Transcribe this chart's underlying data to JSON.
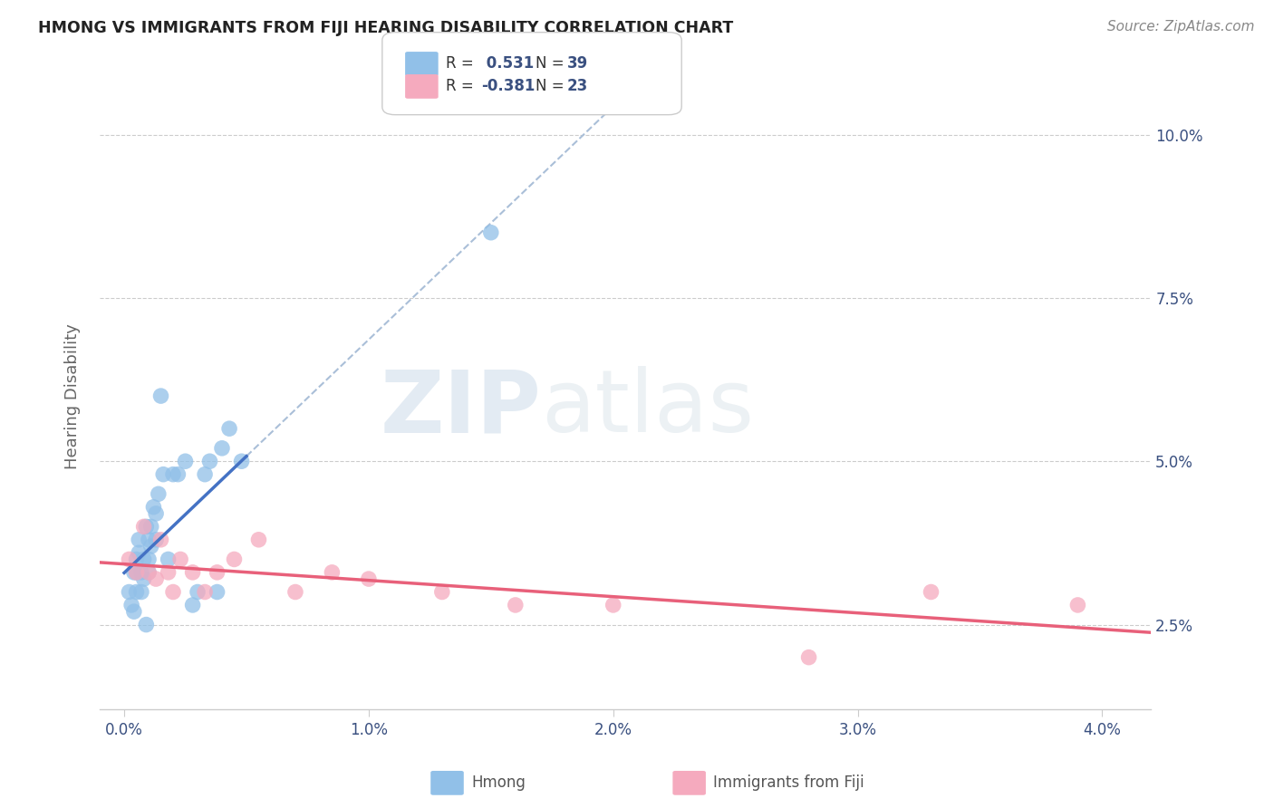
{
  "title": "HMONG VS IMMIGRANTS FROM FIJI HEARING DISABILITY CORRELATION CHART",
  "source": "Source: ZipAtlas.com",
  "ylabel": "Hearing Disability",
  "yticks": [
    0.025,
    0.05,
    0.075,
    0.1
  ],
  "ytick_labels": [
    "2.5%",
    "5.0%",
    "7.5%",
    "10.0%"
  ],
  "xticks": [
    0.0,
    0.01,
    0.02,
    0.03,
    0.04
  ],
  "xtick_labels": [
    "0.0%",
    "1.0%",
    "2.0%",
    "3.0%",
    "4.0%"
  ],
  "xlim": [
    -0.001,
    0.042
  ],
  "ylim": [
    0.012,
    0.108
  ],
  "hmong_R": 0.531,
  "hmong_N": 39,
  "fiji_R": -0.381,
  "fiji_N": 23,
  "hmong_color": "#91C0E8",
  "fiji_color": "#F5AABE",
  "trend_hmong_color": "#4472C4",
  "trend_fiji_color": "#E8607A",
  "dashed_color": "#AABFD8",
  "watermark_zip": "ZIP",
  "watermark_atlas": "atlas",
  "background_color": "#ffffff",
  "grid_color": "#cccccc",
  "hmong_x": [
    0.0002,
    0.0003,
    0.0004,
    0.0004,
    0.0005,
    0.0005,
    0.0005,
    0.0006,
    0.0006,
    0.0007,
    0.0007,
    0.0008,
    0.0008,
    0.0009,
    0.0009,
    0.001,
    0.001,
    0.001,
    0.0011,
    0.0011,
    0.0012,
    0.0013,
    0.0013,
    0.0014,
    0.0015,
    0.0016,
    0.0018,
    0.002,
    0.0022,
    0.0025,
    0.0028,
    0.003,
    0.0033,
    0.0035,
    0.0038,
    0.004,
    0.0043,
    0.0048,
    0.015
  ],
  "hmong_y": [
    0.03,
    0.028,
    0.033,
    0.027,
    0.035,
    0.033,
    0.03,
    0.038,
    0.036,
    0.033,
    0.03,
    0.032,
    0.035,
    0.04,
    0.025,
    0.033,
    0.038,
    0.035,
    0.04,
    0.037,
    0.043,
    0.038,
    0.042,
    0.045,
    0.06,
    0.048,
    0.035,
    0.048,
    0.048,
    0.05,
    0.028,
    0.03,
    0.048,
    0.05,
    0.03,
    0.052,
    0.055,
    0.05,
    0.085
  ],
  "fiji_x": [
    0.0002,
    0.0005,
    0.0008,
    0.001,
    0.0013,
    0.0015,
    0.0018,
    0.002,
    0.0023,
    0.0028,
    0.0033,
    0.0038,
    0.0045,
    0.0055,
    0.007,
    0.0085,
    0.01,
    0.013,
    0.016,
    0.02,
    0.028,
    0.033,
    0.039
  ],
  "fiji_y": [
    0.035,
    0.033,
    0.04,
    0.033,
    0.032,
    0.038,
    0.033,
    0.03,
    0.035,
    0.033,
    0.03,
    0.033,
    0.035,
    0.038,
    0.03,
    0.033,
    0.032,
    0.03,
    0.028,
    0.028,
    0.02,
    0.03,
    0.028
  ]
}
